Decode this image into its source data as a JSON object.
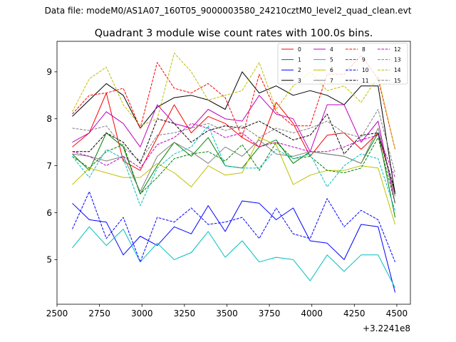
{
  "header": {
    "data_file": "Data file: modeM0/AS1A07_160T05_9000003580_24210cztM0_level2_quad_clean.evt"
  },
  "chart_data": {
    "type": "line",
    "title": "Quadrant 3 module wise count rates with 100.0s bins.",
    "xlabel": "",
    "ylabel": "",
    "x_offset_label": "+3.2241e8",
    "xlim": [
      2500,
      4580
    ],
    "ylim": [
      4.05,
      9.65
    ],
    "xticks": [
      2500,
      2750,
      3000,
      3250,
      3500,
      3750,
      4000,
      4250,
      4500
    ],
    "xtick_labels": [
      "2500",
      "2750",
      "3000",
      "3250",
      "3500",
      "3750",
      "4000",
      "4250",
      "4500"
    ],
    "yticks": [
      5,
      6,
      7,
      8,
      9
    ],
    "ytick_labels": [
      "5",
      "6",
      "7",
      "8",
      "9"
    ],
    "x": [
      2590,
      2690,
      2790,
      2890,
      2990,
      3090,
      3190,
      3290,
      3390,
      3490,
      3590,
      3690,
      3790,
      3890,
      3990,
      4090,
      4190,
      4290,
      4390,
      4490
    ],
    "legend_position": "top-right",
    "series": [
      {
        "name": "0",
        "color": "#ff0000",
        "dash": "solid",
        "values": [
          7.4,
          7.7,
          8.55,
          7.1,
          6.9,
          7.6,
          8.3,
          7.7,
          8.05,
          7.9,
          7.6,
          7.4,
          8.35,
          7.9,
          7.2,
          7.65,
          7.7,
          7.35,
          7.7,
          6.4
        ]
      },
      {
        "name": "1",
        "color": "#008000",
        "dash": "solid",
        "values": [
          7.25,
          6.9,
          7.7,
          7.4,
          6.4,
          7.0,
          7.5,
          7.2,
          7.6,
          7.0,
          6.95,
          7.4,
          7.55,
          7.05,
          7.3,
          7.25,
          7.2,
          7.05,
          7.7,
          5.9
        ]
      },
      {
        "name": "2",
        "color": "#0000ff",
        "dash": "solid",
        "values": [
          6.2,
          5.85,
          5.8,
          5.1,
          5.5,
          5.3,
          5.7,
          5.55,
          6.15,
          5.6,
          6.25,
          6.2,
          5.85,
          6.1,
          5.4,
          5.35,
          5.0,
          5.75,
          5.7,
          4.3
        ]
      },
      {
        "name": "3",
        "color": "#000000",
        "dash": "solid",
        "values": [
          8.05,
          8.4,
          8.75,
          8.5,
          7.8,
          8.25,
          8.45,
          8.5,
          8.4,
          8.2,
          9.0,
          8.55,
          8.7,
          8.5,
          8.6,
          8.5,
          8.3,
          8.7,
          8.7,
          6.4
        ]
      },
      {
        "name": "4",
        "color": "#bf00bf",
        "dash": "solid",
        "values": [
          7.5,
          7.7,
          8.15,
          7.9,
          7.4,
          8.3,
          7.9,
          7.8,
          8.2,
          8.0,
          7.95,
          8.5,
          8.1,
          8.0,
          7.3,
          8.3,
          8.3,
          7.5,
          7.95,
          6.2
        ]
      },
      {
        "name": "5",
        "color": "#00bfbf",
        "dash": "solid",
        "values": [
          5.25,
          5.7,
          5.3,
          5.65,
          4.95,
          5.35,
          5.0,
          5.15,
          5.6,
          5.05,
          5.4,
          4.95,
          5.05,
          5.0,
          4.55,
          5.1,
          4.75,
          5.1,
          5.1,
          4.4
        ]
      },
      {
        "name": "6",
        "color": "#bfbf00",
        "dash": "solid",
        "values": [
          6.6,
          6.95,
          6.85,
          6.75,
          6.75,
          7.05,
          6.85,
          6.55,
          7.0,
          6.8,
          6.85,
          7.6,
          7.45,
          6.6,
          6.8,
          6.9,
          6.9,
          7.0,
          6.95,
          5.75
        ]
      },
      {
        "name": "7",
        "color": "#808080",
        "dash": "solid",
        "values": [
          7.25,
          7.2,
          7.1,
          7.2,
          6.45,
          7.2,
          7.5,
          7.3,
          7.05,
          7.4,
          7.2,
          7.55,
          7.25,
          7.2,
          7.3,
          7.25,
          7.2,
          7.05,
          7.8,
          6.35
        ]
      },
      {
        "name": "8",
        "color": "#ff0000",
        "dash": "dashed",
        "values": [
          8.1,
          8.5,
          8.55,
          8.65,
          7.8,
          9.2,
          8.65,
          8.55,
          8.75,
          8.45,
          7.6,
          8.95,
          8.15,
          7.85,
          7.85,
          8.95,
          8.95,
          9.35,
          8.85,
          7.35
        ]
      },
      {
        "name": "9",
        "color": "#008000",
        "dash": "dashed",
        "values": [
          7.2,
          6.95,
          7.3,
          7.45,
          6.4,
          6.75,
          7.15,
          7.25,
          7.3,
          7.1,
          7.45,
          6.9,
          7.5,
          7.15,
          7.2,
          6.9,
          6.85,
          6.95,
          7.6,
          6.2
        ]
      },
      {
        "name": "10",
        "color": "#0000ff",
        "dash": "dashed",
        "values": [
          5.65,
          6.45,
          5.45,
          5.9,
          4.95,
          5.9,
          5.8,
          6.1,
          5.75,
          5.8,
          5.9,
          5.45,
          6.1,
          5.55,
          5.45,
          6.3,
          5.7,
          6.05,
          5.85,
          4.95
        ]
      },
      {
        "name": "11",
        "color": "#000000",
        "dash": "dashed",
        "values": [
          7.3,
          7.3,
          7.7,
          7.5,
          7.05,
          8.0,
          7.9,
          7.5,
          7.75,
          7.85,
          7.8,
          7.95,
          7.75,
          7.55,
          7.65,
          8.1,
          7.25,
          7.65,
          7.7,
          6.45
        ]
      },
      {
        "name": "12",
        "color": "#bf00bf",
        "dash": "dashed",
        "values": [
          7.3,
          7.2,
          7.0,
          7.2,
          6.95,
          7.45,
          7.6,
          7.9,
          7.8,
          7.6,
          7.7,
          7.4,
          7.5,
          7.4,
          7.3,
          7.3,
          7.4,
          7.55,
          7.65,
          6.75
        ]
      },
      {
        "name": "13",
        "color": "#00bfbf",
        "dash": "dashed",
        "values": [
          7.2,
          6.75,
          7.35,
          7.15,
          6.15,
          6.95,
          7.25,
          7.4,
          7.85,
          7.0,
          6.95,
          6.95,
          7.35,
          7.15,
          7.25,
          6.55,
          7.0,
          7.25,
          7.15,
          6.05
        ]
      },
      {
        "name": "14",
        "color": "#bfbf00",
        "dash": "dashed",
        "values": [
          8.15,
          8.85,
          9.1,
          8.3,
          7.85,
          8.0,
          9.4,
          9.0,
          8.4,
          8.5,
          8.6,
          9.2,
          8.2,
          8.7,
          9.0,
          8.6,
          8.7,
          8.35,
          8.9,
          7.35
        ]
      },
      {
        "name": "15",
        "color": "#808080",
        "dash": "dashed",
        "values": [
          7.8,
          7.75,
          7.85,
          7.4,
          7.1,
          7.65,
          7.7,
          7.8,
          7.9,
          7.75,
          7.85,
          7.6,
          7.8,
          7.7,
          7.8,
          7.95,
          7.7,
          7.6,
          8.2,
          6.85
        ]
      }
    ]
  }
}
